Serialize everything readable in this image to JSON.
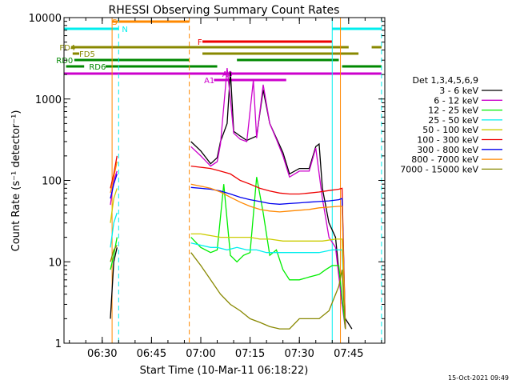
{
  "chart_data": {
    "type": "line",
    "title": "RHESSI Observing Summary Count Rates",
    "xlabel": "Start Time (10-Mar-11 06:18:22)",
    "ylabel": "Count Rate (s⁻¹ detector⁻¹)",
    "x_scale": "time",
    "y_scale": "log",
    "xlim": [
      "06:18:22",
      "07:56:00"
    ],
    "ylim": [
      1,
      10000
    ],
    "x_ticks": [
      "06:30",
      "06:45",
      "07:00",
      "07:15",
      "07:30",
      "07:45"
    ],
    "y_ticks": [
      "1",
      "10",
      "100",
      "1000",
      "10000"
    ],
    "grid": false,
    "legend_title": "Det 1,3,4,5,6,9",
    "legend_position": "right",
    "footer": "15-Oct-2021 09:49",
    "series": [
      {
        "name": "3 - 6 keV",
        "color": "#000000",
        "segments": [
          [
            [
              "06:32:30",
              2
            ],
            [
              "06:33:30",
              10
            ],
            [
              "06:34:30",
              15
            ]
          ],
          [
            [
              "06:57:00",
              300
            ],
            [
              "07:00:00",
              230
            ],
            [
              "07:03:00",
              160
            ],
            [
              "07:05:00",
              190
            ],
            [
              "07:06:00",
              300
            ],
            [
              "07:08:00",
              500
            ],
            [
              "07:09:00",
              2200
            ],
            [
              "07:10:00",
              400
            ],
            [
              "07:12:00",
              350
            ],
            [
              "07:14:00",
              310
            ],
            [
              "07:17:00",
              350
            ],
            [
              "07:19:00",
              1300
            ],
            [
              "07:21:00",
              500
            ],
            [
              "07:23:00",
              330
            ],
            [
              "07:25:00",
              220
            ],
            [
              "07:27:00",
              120
            ],
            [
              "07:30:00",
              140
            ],
            [
              "07:33:00",
              140
            ],
            [
              "07:35:00",
              260
            ],
            [
              "07:36:00",
              280
            ],
            [
              "07:37:00",
              80
            ],
            [
              "07:39:00",
              30
            ],
            [
              "07:41:00",
              20
            ],
            [
              "07:43:00",
              3
            ],
            [
              "07:44:00",
              2
            ],
            [
              "07:46:00",
              1.5
            ]
          ]
        ]
      },
      {
        "name": "6 - 12 keV",
        "color": "#cc00cc",
        "segments": [
          [
            [
              "06:32:30",
              50
            ],
            [
              "06:33:30",
              100
            ],
            [
              "06:34:30",
              130
            ]
          ],
          [
            [
              "06:57:00",
              260
            ],
            [
              "07:00:00",
              200
            ],
            [
              "07:03:00",
              150
            ],
            [
              "07:05:00",
              170
            ],
            [
              "07:06:00",
              280
            ],
            [
              "07:08:00",
              2400
            ],
            [
              "07:09:00",
              1000
            ],
            [
              "07:10:00",
              380
            ],
            [
              "07:12:00",
              320
            ],
            [
              "07:14:00",
              300
            ],
            [
              "07:16:00",
              1700
            ],
            [
              "07:17:00",
              330
            ],
            [
              "07:19:00",
              1500
            ],
            [
              "07:21:00",
              500
            ],
            [
              "07:23:00",
              320
            ],
            [
              "07:25:00",
              200
            ],
            [
              "07:27:00",
              110
            ],
            [
              "07:30:00",
              130
            ],
            [
              "07:33:00",
              130
            ],
            [
              "07:35:00",
              250
            ],
            [
              "07:37:00",
              60
            ],
            [
              "07:39:00",
              20
            ],
            [
              "07:41:00",
              15
            ],
            [
              "07:43:00",
              3
            ],
            [
              "07:44:00",
              1.5
            ]
          ]
        ]
      },
      {
        "name": "12 - 25 keV",
        "color": "#00ee00",
        "segments": [
          [
            [
              "06:32:30",
              8
            ],
            [
              "06:33:30",
              12
            ],
            [
              "06:34:30",
              20
            ]
          ],
          [
            [
              "06:57:00",
              20
            ],
            [
              "07:00:00",
              15
            ],
            [
              "07:03:00",
              13
            ],
            [
              "07:05:00",
              14
            ],
            [
              "07:07:00",
              90
            ],
            [
              "07:09:00",
              12
            ],
            [
              "07:11:00",
              10
            ],
            [
              "07:13:00",
              12
            ],
            [
              "07:15:00",
              13
            ],
            [
              "07:17:00",
              110
            ],
            [
              "07:19:00",
              40
            ],
            [
              "07:21:00",
              12
            ],
            [
              "07:23:00",
              14
            ],
            [
              "07:25:00",
              8
            ],
            [
              "07:27:00",
              6
            ],
            [
              "07:30:00",
              6
            ],
            [
              "07:33:00",
              6.5
            ],
            [
              "07:36:00",
              7
            ],
            [
              "07:38:00",
              8
            ],
            [
              "07:40:00",
              9
            ],
            [
              "07:42:00",
              9
            ],
            [
              "07:44:00",
              1.5
            ]
          ]
        ]
      },
      {
        "name": "25 - 50 keV",
        "color": "#00eeee",
        "segments": [
          [
            [
              "06:32:30",
              15
            ],
            [
              "06:33:30",
              30
            ],
            [
              "06:34:30",
              40
            ]
          ],
          [
            [
              "06:57:00",
              17
            ],
            [
              "07:00:00",
              16
            ],
            [
              "07:03:00",
              15
            ],
            [
              "07:05:00",
              15
            ],
            [
              "07:08:00",
              14
            ],
            [
              "07:11:00",
              15
            ],
            [
              "07:14:00",
              14
            ],
            [
              "07:17:00",
              14
            ],
            [
              "07:20:00",
              13
            ],
            [
              "07:24:00",
              13
            ],
            [
              "07:28:00",
              13
            ],
            [
              "07:32:00",
              13
            ],
            [
              "07:36:00",
              13
            ],
            [
              "07:40:00",
              14
            ],
            [
              "07:43:00",
              14
            ],
            [
              "07:44:00",
              1.5
            ]
          ]
        ]
      },
      {
        "name": "50 - 100 keV",
        "color": "#cccc00",
        "segments": [
          [
            [
              "06:32:30",
              30
            ],
            [
              "06:33:30",
              60
            ],
            [
              "06:34:30",
              80
            ]
          ],
          [
            [
              "06:57:00",
              22
            ],
            [
              "07:00:00",
              22
            ],
            [
              "07:03:00",
              21
            ],
            [
              "07:06:00",
              20
            ],
            [
              "07:09:00",
              20
            ],
            [
              "07:12:00",
              20
            ],
            [
              "07:15:00",
              20
            ],
            [
              "07:18:00",
              19
            ],
            [
              "07:21:00",
              19
            ],
            [
              "07:25:00",
              18
            ],
            [
              "07:29:00",
              18
            ],
            [
              "07:33:00",
              18
            ],
            [
              "07:37:00",
              18
            ],
            [
              "07:41:00",
              19
            ],
            [
              "07:43:00",
              19
            ],
            [
              "07:44:00",
              1.5
            ]
          ]
        ]
      },
      {
        "name": "100 - 300 keV",
        "color": "#ee0000",
        "segments": [
          [
            [
              "06:32:30",
              80
            ],
            [
              "06:33:30",
              120
            ],
            [
              "06:34:30",
              200
            ]
          ],
          [
            [
              "06:57:00",
              150
            ],
            [
              "07:00:00",
              145
            ],
            [
              "07:03:00",
              140
            ],
            [
              "07:06:00",
              130
            ],
            [
              "07:09:00",
              120
            ],
            [
              "07:12:00",
              100
            ],
            [
              "07:15:00",
              90
            ],
            [
              "07:18:00",
              80
            ],
            [
              "07:21:00",
              74
            ],
            [
              "07:24:00",
              70
            ],
            [
              "07:27:00",
              68
            ],
            [
              "07:30:00",
              68
            ],
            [
              "07:33:00",
              70
            ],
            [
              "07:36:00",
              72
            ],
            [
              "07:39:00",
              75
            ],
            [
              "07:42:00",
              78
            ],
            [
              "07:43:00",
              80
            ],
            [
              "07:44:00",
              1.5
            ]
          ]
        ]
      },
      {
        "name": "300 - 800 keV",
        "color": "#0000ee",
        "segments": [
          [
            [
              "06:32:30",
              60
            ],
            [
              "06:33:30",
              90
            ],
            [
              "06:34:30",
              120
            ]
          ],
          [
            [
              "06:57:00",
              82
            ],
            [
              "07:00:00",
              80
            ],
            [
              "07:03:00",
              78
            ],
            [
              "07:06:00",
              74
            ],
            [
              "07:09:00",
              68
            ],
            [
              "07:12:00",
              62
            ],
            [
              "07:15:00",
              58
            ],
            [
              "07:18:00",
              55
            ],
            [
              "07:21:00",
              52
            ],
            [
              "07:24:00",
              51
            ],
            [
              "07:27:00",
              52
            ],
            [
              "07:30:00",
              53
            ],
            [
              "07:33:00",
              54
            ],
            [
              "07:36:00",
              55
            ],
            [
              "07:39:00",
              56
            ],
            [
              "07:42:00",
              58
            ],
            [
              "07:43:00",
              60
            ],
            [
              "07:44:00",
              1.5
            ]
          ]
        ]
      },
      {
        "name": "800 - 7000 keV",
        "color": "#ff8800",
        "segments": [
          [
            [
              "06:32:30",
              70
            ],
            [
              "06:33:30",
              110
            ],
            [
              "06:34:30",
              170
            ]
          ],
          [
            [
              "06:57:00",
              90
            ],
            [
              "07:00:00",
              85
            ],
            [
              "07:03:00",
              80
            ],
            [
              "07:06:00",
              72
            ],
            [
              "07:09:00",
              62
            ],
            [
              "07:12:00",
              54
            ],
            [
              "07:15:00",
              48
            ],
            [
              "07:18:00",
              44
            ],
            [
              "07:21:00",
              42
            ],
            [
              "07:24:00",
              41
            ],
            [
              "07:27:00",
              42
            ],
            [
              "07:30:00",
              43
            ],
            [
              "07:33:00",
              44
            ],
            [
              "07:36:00",
              46
            ],
            [
              "07:39:00",
              47
            ],
            [
              "07:42:00",
              48
            ],
            [
              "07:43:00",
              48
            ],
            [
              "07:44:00",
              1.5
            ]
          ]
        ]
      },
      {
        "name": "7000 - 15000 keV",
        "color": "#888800",
        "segments": [
          [
            [
              "06:32:30",
              10
            ],
            [
              "06:33:30",
              14
            ],
            [
              "06:34:30",
              16
            ]
          ],
          [
            [
              "06:57:00",
              13
            ],
            [
              "07:00:00",
              9
            ],
            [
              "07:03:00",
              6
            ],
            [
              "07:06:00",
              4
            ],
            [
              "07:09:00",
              3
            ],
            [
              "07:12:00",
              2.5
            ],
            [
              "07:15:00",
              2
            ],
            [
              "07:18:00",
              1.8
            ],
            [
              "07:21:00",
              1.6
            ],
            [
              "07:24:00",
              1.5
            ],
            [
              "07:27:00",
              1.5
            ],
            [
              "07:30:00",
              2
            ],
            [
              "07:33:00",
              2
            ],
            [
              "07:36:00",
              2
            ],
            [
              "07:39:00",
              2.5
            ],
            [
              "07:42:00",
              5
            ],
            [
              "07:43:00",
              8
            ],
            [
              "07:44:00",
              1.5
            ]
          ]
        ]
      }
    ],
    "vertical_lines": [
      {
        "time": "06:33:00",
        "color": "#ff8800",
        "dash": false
      },
      {
        "time": "06:35:00",
        "color": "#00eeee",
        "dash": true
      },
      {
        "time": "06:56:30",
        "color": "#ff8800",
        "dash": true
      },
      {
        "time": "07:40:00",
        "color": "#00eeee",
        "dash": false
      },
      {
        "time": "07:42:30",
        "color": "#ff8800",
        "dash": false
      },
      {
        "time": "07:55:00",
        "color": "#00eeee",
        "dash": true
      }
    ],
    "status_bars": [
      {
        "label": "S",
        "color": "#ff8800",
        "y": 5,
        "label_time": "06:33:00",
        "segments": [
          [
            "06:33:00",
            "06:56:30"
          ]
        ]
      },
      {
        "label": "N",
        "color": "#00eeee",
        "y": 14,
        "label_time": "06:36:00",
        "segments": [
          [
            "06:18:22",
            "06:35:00"
          ],
          [
            "07:40:00",
            "07:55:00"
          ]
        ]
      },
      {
        "label": "F",
        "color": "#ee0000",
        "y": 30,
        "label_time": "06:59:00",
        "segments": [
          [
            "07:00:30",
            "07:40:00"
          ]
        ]
      },
      {
        "label": "FD4",
        "color": "#888800",
        "y": 37,
        "label_time": "06:17:00",
        "segments": [
          [
            "06:20:30",
            "07:45:00"
          ],
          [
            "07:52:00",
            "07:55:00"
          ]
        ]
      },
      {
        "label": "FD5",
        "color": "#888800",
        "y": 45,
        "label_time": "06:23:00",
        "segments": [
          [
            "06:21:00",
            "06:23:00"
          ],
          [
            "07:00:30",
            "07:48:00"
          ]
        ]
      },
      {
        "label": "RD0",
        "color": "#008800",
        "y": 53,
        "label_time": "06:16:00",
        "segments": [
          [
            "06:21:30",
            "06:56:30"
          ],
          [
            "07:11:00",
            "07:42:00"
          ]
        ]
      },
      {
        "label": "RD6",
        "color": "#008800",
        "y": 61,
        "label_time": "06:26:00",
        "segments": [
          [
            "06:19:00",
            "06:24:30"
          ],
          [
            "06:31:00",
            "06:56:30"
          ],
          [
            "06:56:30",
            "07:05:00"
          ],
          [
            "07:43:00",
            "07:55:00"
          ]
        ]
      },
      {
        "label": "A0",
        "color": "#cc00cc",
        "y": 70,
        "label_time": "07:06:30",
        "segments": [
          [
            "06:18:22",
            "07:55:00"
          ]
        ]
      },
      {
        "label": "A1",
        "color": "#cc00cc",
        "y": 78,
        "label_time": "07:01:00",
        "segments": [
          [
            "07:04:00",
            "07:26:00"
          ]
        ]
      }
    ]
  }
}
